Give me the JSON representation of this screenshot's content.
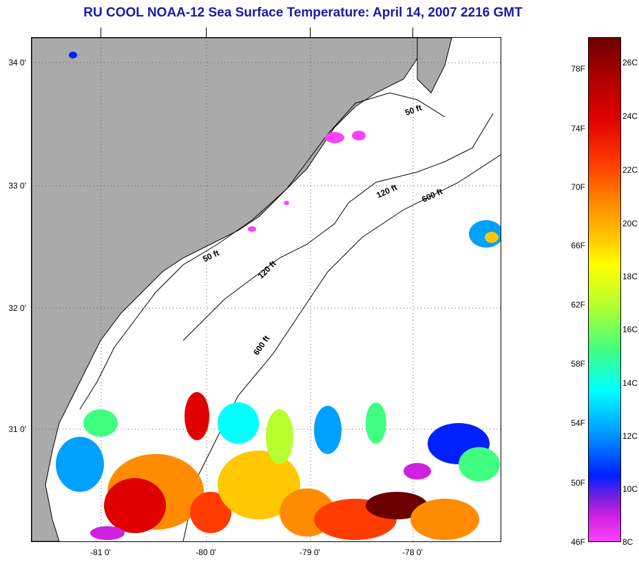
{
  "title": "RU COOL  NOAA-12  Sea Surface Temperature:  April 14, 2007 2216 GMT",
  "lat_labels": [
    "34 0'",
    "33 0'",
    "32 0'",
    "31 0'"
  ],
  "lon_labels": [
    "-81 0'",
    "-80 0'",
    "-79 0'",
    "-78 0'"
  ],
  "isobath_labels": {
    "a": "50 ft",
    "b": "120 ft",
    "c": "600 ft",
    "d": "50 ft",
    "e": "120 ft",
    "f": "600 ft"
  },
  "colorbar": {
    "fahrenheit": [
      "78F",
      "74F",
      "70F",
      "66F",
      "62F",
      "58F",
      "54F",
      "50F",
      "46F"
    ],
    "celsius": [
      "26C",
      "24C",
      "22C",
      "20C",
      "18C",
      "16C",
      "14C",
      "12C",
      "10C",
      "8C"
    ]
  },
  "colors": {
    "land": "#aaaaaa",
    "title": "#1a1aa6",
    "warm": "#b00000",
    "cool": "#0020ff"
  }
}
